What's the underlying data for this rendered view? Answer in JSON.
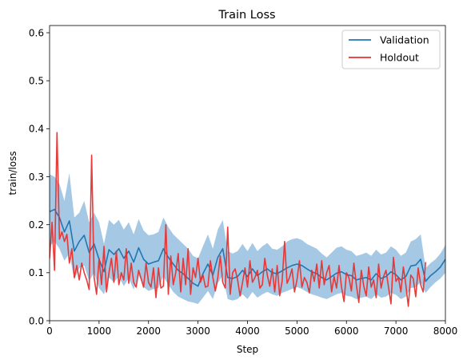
{
  "chart_data": {
    "type": "line",
    "title": "Train Loss",
    "xlabel": "Step",
    "ylabel": "train/loss",
    "xlim": [
      0,
      8000
    ],
    "ylim": [
      0,
      0.615
    ],
    "xticks": [
      0,
      1000,
      2000,
      3000,
      4000,
      5000,
      6000,
      7000,
      8000
    ],
    "xtick_labels": [
      "0",
      "1000",
      "2000",
      "3000",
      "4000",
      "5000",
      "6000",
      "7000",
      "8000"
    ],
    "yticks": [
      0.0,
      0.1,
      0.2,
      0.3,
      0.4,
      0.5,
      0.6
    ],
    "ytick_labels": [
      "0.0",
      "0.1",
      "0.2",
      "0.3",
      "0.4",
      "0.5",
      "0.6"
    ],
    "grid": false,
    "legend_position": "upper-right",
    "series": [
      {
        "name": "Validation",
        "color": "#1f77b4",
        "band_color": "#7fb2d8",
        "x": [
          0,
          100,
          200,
          300,
          400,
          500,
          600,
          700,
          800,
          900,
          1000,
          1100,
          1200,
          1300,
          1400,
          1500,
          1600,
          1700,
          1800,
          1900,
          2000,
          2100,
          2200,
          2300,
          2400,
          2500,
          2600,
          2700,
          2800,
          2900,
          3000,
          3100,
          3200,
          3300,
          3400,
          3500,
          3600,
          3700,
          3800,
          3900,
          4000,
          4100,
          4200,
          4300,
          4400,
          4500,
          4600,
          4700,
          4800,
          4900,
          5000,
          5100,
          5200,
          5300,
          5400,
          5500,
          5600,
          5700,
          5800,
          5900,
          6000,
          6100,
          6200,
          6300,
          6400,
          6500,
          6600,
          6700,
          6800,
          6900,
          7000,
          7100,
          7200,
          7300,
          7400,
          7500,
          7600,
          7700,
          7800,
          7900,
          8000
        ],
        "y": [
          0.227,
          0.232,
          0.215,
          0.185,
          0.208,
          0.145,
          0.165,
          0.178,
          0.142,
          0.16,
          0.128,
          0.102,
          0.148,
          0.138,
          0.15,
          0.13,
          0.145,
          0.122,
          0.152,
          0.128,
          0.118,
          0.122,
          0.125,
          0.15,
          0.132,
          0.118,
          0.105,
          0.098,
          0.088,
          0.078,
          0.072,
          0.098,
          0.118,
          0.095,
          0.132,
          0.15,
          0.09,
          0.088,
          0.092,
          0.105,
          0.092,
          0.108,
          0.094,
          0.102,
          0.108,
          0.1,
          0.098,
          0.104,
          0.11,
          0.115,
          0.118,
          0.115,
          0.108,
          0.102,
          0.098,
          0.09,
          0.085,
          0.092,
          0.099,
          0.102,
          0.096,
          0.094,
          0.085,
          0.088,
          0.09,
          0.085,
          0.098,
          0.088,
          0.092,
          0.102,
          0.096,
          0.085,
          0.092,
          0.114,
          0.116,
          0.128,
          0.082,
          0.094,
          0.102,
          0.112,
          0.128
        ],
        "lower": [
          0.155,
          0.165,
          0.15,
          0.125,
          0.14,
          0.085,
          0.11,
          0.115,
          0.082,
          0.1,
          0.068,
          0.055,
          0.09,
          0.08,
          0.092,
          0.072,
          0.088,
          0.065,
          0.095,
          0.07,
          0.062,
          0.066,
          0.068,
          0.092,
          0.075,
          0.06,
          0.05,
          0.045,
          0.04,
          0.038,
          0.035,
          0.048,
          0.062,
          0.045,
          0.078,
          0.095,
          0.045,
          0.042,
          0.045,
          0.055,
          0.045,
          0.06,
          0.048,
          0.055,
          0.06,
          0.055,
          0.052,
          0.058,
          0.062,
          0.066,
          0.07,
          0.066,
          0.06,
          0.055,
          0.052,
          0.048,
          0.045,
          0.05,
          0.055,
          0.058,
          0.052,
          0.05,
          0.045,
          0.048,
          0.05,
          0.045,
          0.055,
          0.048,
          0.05,
          0.058,
          0.054,
          0.045,
          0.05,
          0.068,
          0.07,
          0.08,
          0.058,
          0.07,
          0.08,
          0.088,
          0.1
        ],
        "upper": [
          0.305,
          0.3,
          0.285,
          0.25,
          0.308,
          0.215,
          0.225,
          0.25,
          0.205,
          0.225,
          0.205,
          0.16,
          0.21,
          0.2,
          0.21,
          0.19,
          0.205,
          0.18,
          0.212,
          0.188,
          0.178,
          0.18,
          0.185,
          0.215,
          0.195,
          0.18,
          0.17,
          0.16,
          0.15,
          0.135,
          0.13,
          0.155,
          0.18,
          0.15,
          0.19,
          0.21,
          0.145,
          0.14,
          0.145,
          0.16,
          0.145,
          0.162,
          0.145,
          0.155,
          0.162,
          0.15,
          0.148,
          0.155,
          0.165,
          0.17,
          0.172,
          0.168,
          0.16,
          0.155,
          0.15,
          0.14,
          0.132,
          0.142,
          0.152,
          0.155,
          0.148,
          0.145,
          0.135,
          0.138,
          0.142,
          0.135,
          0.148,
          0.138,
          0.142,
          0.155,
          0.148,
          0.135,
          0.142,
          0.165,
          0.17,
          0.18,
          0.11,
          0.12,
          0.128,
          0.14,
          0.158
        ]
      },
      {
        "name": "Holdout",
        "color": "#e8302f",
        "x": [
          0,
          50,
          100,
          150,
          200,
          250,
          300,
          350,
          400,
          450,
          500,
          550,
          600,
          650,
          700,
          750,
          800,
          850,
          900,
          950,
          1000,
          1050,
          1100,
          1150,
          1200,
          1250,
          1300,
          1350,
          1400,
          1450,
          1500,
          1550,
          1600,
          1650,
          1700,
          1750,
          1800,
          1850,
          1900,
          1950,
          2000,
          2050,
          2100,
          2150,
          2200,
          2250,
          2300,
          2350,
          2400,
          2450,
          2500,
          2550,
          2600,
          2650,
          2700,
          2750,
          2800,
          2850,
          2900,
          2950,
          3000,
          3050,
          3100,
          3150,
          3200,
          3250,
          3300,
          3350,
          3400,
          3450,
          3500,
          3550,
          3600,
          3650,
          3700,
          3750,
          3800,
          3850,
          3900,
          3950,
          4000,
          4050,
          4100,
          4150,
          4200,
          4250,
          4300,
          4350,
          4400,
          4450,
          4500,
          4550,
          4600,
          4650,
          4700,
          4750,
          4800,
          4850,
          4900,
          4950,
          5000,
          5050,
          5100,
          5150,
          5200,
          5250,
          5300,
          5350,
          5400,
          5450,
          5500,
          5550,
          5600,
          5650,
          5700,
          5750,
          5800,
          5850,
          5900,
          5950,
          6000,
          6050,
          6100,
          6150,
          6200,
          6250,
          6300,
          6350,
          6400,
          6450,
          6500,
          6550,
          6600,
          6650,
          6700,
          6750,
          6800,
          6850,
          6900,
          6950,
          7000,
          7050,
          7100,
          7150,
          7200,
          7250,
          7300,
          7350,
          7400,
          7450,
          7500,
          7550,
          7600
        ],
        "y": [
          0.13,
          0.205,
          0.105,
          0.392,
          0.17,
          0.185,
          0.165,
          0.18,
          0.12,
          0.15,
          0.09,
          0.115,
          0.085,
          0.12,
          0.1,
          0.085,
          0.065,
          0.345,
          0.09,
          0.055,
          0.13,
          0.075,
          0.155,
          0.06,
          0.1,
          0.13,
          0.08,
          0.145,
          0.075,
          0.1,
          0.085,
          0.15,
          0.078,
          0.12,
          0.08,
          0.07,
          0.105,
          0.088,
          0.07,
          0.12,
          0.08,
          0.07,
          0.11,
          0.048,
          0.11,
          0.068,
          0.072,
          0.2,
          0.055,
          0.135,
          0.075,
          0.1,
          0.14,
          0.06,
          0.13,
          0.075,
          0.15,
          0.055,
          0.11,
          0.09,
          0.13,
          0.08,
          0.095,
          0.07,
          0.072,
          0.125,
          0.09,
          0.062,
          0.09,
          0.135,
          0.08,
          0.068,
          0.195,
          0.055,
          0.1,
          0.108,
          0.085,
          0.052,
          0.08,
          0.11,
          0.07,
          0.125,
          0.08,
          0.09,
          0.105,
          0.068,
          0.075,
          0.13,
          0.095,
          0.072,
          0.108,
          0.06,
          0.115,
          0.052,
          0.082,
          0.165,
          0.078,
          0.09,
          0.108,
          0.06,
          0.085,
          0.125,
          0.07,
          0.09,
          0.08,
          0.058,
          0.105,
          0.082,
          0.118,
          0.068,
          0.125,
          0.075,
          0.1,
          0.115,
          0.06,
          0.092,
          0.068,
          0.115,
          0.07,
          0.04,
          0.1,
          0.09,
          0.062,
          0.12,
          0.075,
          0.038,
          0.105,
          0.072,
          0.052,
          0.112,
          0.07,
          0.085,
          0.048,
          0.118,
          0.068,
          0.092,
          0.105,
          0.07,
          0.035,
          0.132,
          0.082,
          0.09,
          0.06,
          0.112,
          0.075,
          0.03,
          0.095,
          0.088,
          0.05,
          0.11,
          0.075,
          0.06,
          0.122
        ]
      }
    ]
  }
}
